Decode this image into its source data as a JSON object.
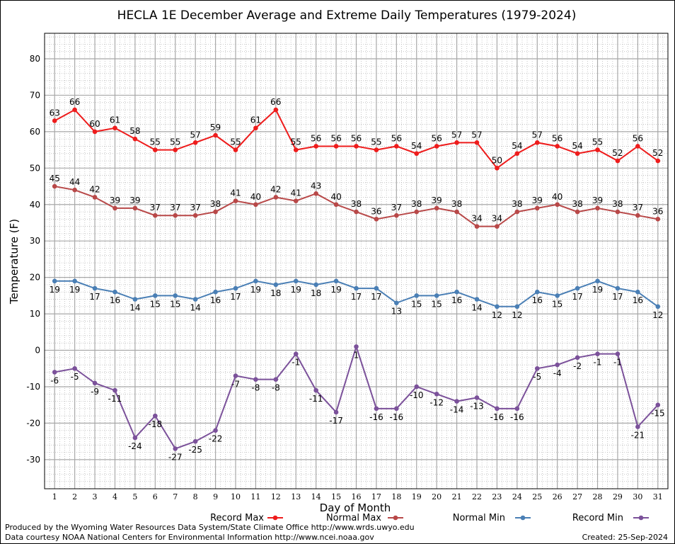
{
  "chart_data": {
    "type": "line",
    "title": "HECLA 1E December Average and Extreme Daily Temperatures (1979-2024)",
    "xlabel": "Day of Month",
    "ylabel": "Temperature (F)",
    "xlim": [
      0.5,
      31.5
    ],
    "ylim": [
      -38,
      87
    ],
    "yticks": [
      -30,
      -20,
      -10,
      0,
      10,
      20,
      30,
      40,
      50,
      60,
      70,
      80
    ],
    "x": [
      1,
      2,
      3,
      4,
      5,
      6,
      7,
      8,
      9,
      10,
      11,
      12,
      13,
      14,
      15,
      16,
      17,
      18,
      19,
      20,
      21,
      22,
      23,
      24,
      25,
      26,
      27,
      28,
      29,
      30,
      31
    ],
    "grid": true,
    "legend_position": "bottom",
    "series": [
      {
        "name": "Record Max",
        "color": "#ee1c1c",
        "label_position": "above",
        "values": [
          63,
          66,
          60,
          61,
          58,
          55,
          55,
          57,
          59,
          55,
          61,
          66,
          55,
          56,
          56,
          56,
          55,
          56,
          54,
          56,
          57,
          57,
          50,
          54,
          57,
          56,
          54,
          55,
          52,
          56,
          52
        ]
      },
      {
        "name": "Normal Max",
        "color": "#b84848",
        "label_position": "above",
        "values": [
          45,
          44,
          42,
          39,
          39,
          37,
          37,
          37,
          38,
          41,
          40,
          42,
          41,
          43,
          40,
          38,
          36,
          37,
          38,
          39,
          38,
          34,
          34,
          38,
          39,
          40,
          38,
          39,
          38,
          37,
          36
        ]
      },
      {
        "name": "Normal Min",
        "color": "#4a7fb5",
        "label_position": "below",
        "values": [
          19,
          19,
          17,
          16,
          14,
          15,
          15,
          14,
          16,
          17,
          19,
          18,
          19,
          18,
          19,
          17,
          17,
          13,
          15,
          15,
          16,
          14,
          12,
          12,
          16,
          15,
          17,
          19,
          17,
          16,
          12
        ]
      },
      {
        "name": "Record Min",
        "color": "#7b519a",
        "label_position": "below",
        "values": [
          -6,
          -5,
          -9,
          -11,
          -24,
          -18,
          -27,
          -25,
          -22,
          -7,
          -8,
          -8,
          -1,
          -11,
          -17,
          1,
          -16,
          -16,
          -10,
          -12,
          -14,
          -13,
          -16,
          -16,
          -5,
          -4,
          -2,
          -1,
          -1,
          -21,
          -15
        ]
      }
    ]
  },
  "footer": {
    "producer": "Produced by the Wyoming Water Resources Data System/State Climate Office http://www.wrds.uwyo.edu",
    "courtesy": "Data courtesy NOAA National Centers for Environmental Information http://www.ncei.noaa.gov",
    "created": "Created:  25-Sep-2024"
  }
}
